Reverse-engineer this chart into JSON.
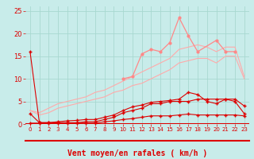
{
  "x": [
    0,
    1,
    2,
    3,
    4,
    5,
    6,
    7,
    8,
    9,
    10,
    11,
    12,
    13,
    14,
    15,
    16,
    17,
    18,
    19,
    20,
    21,
    22,
    23
  ],
  "dark_red1": [
    16.0,
    0.3,
    0.3,
    0.3,
    0.3,
    0.3,
    0.5,
    0.5,
    1.0,
    1.5,
    2.5,
    3.0,
    3.5,
    4.5,
    4.5,
    5.0,
    5.0,
    5.0,
    5.5,
    5.5,
    5.5,
    5.5,
    5.0,
    2.3
  ],
  "dark_red2": [
    2.3,
    0.3,
    0.3,
    0.5,
    0.7,
    0.8,
    1.0,
    1.0,
    1.5,
    2.0,
    3.0,
    3.8,
    4.2,
    4.8,
    5.0,
    5.2,
    5.5,
    7.0,
    6.5,
    5.0,
    4.5,
    5.5,
    5.5,
    4.0
  ],
  "dark_red3": [
    0.2,
    0.2,
    0.2,
    0.2,
    0.2,
    0.2,
    0.2,
    0.2,
    0.5,
    0.7,
    1.0,
    1.2,
    1.5,
    1.8,
    1.8,
    1.8,
    2.0,
    2.2,
    2.0,
    2.0,
    2.0,
    2.0,
    2.0,
    1.8
  ],
  "salmon_lower": [
    3.0,
    2.0,
    2.5,
    3.5,
    4.0,
    4.5,
    5.0,
    5.5,
    6.0,
    7.0,
    7.5,
    8.5,
    9.0,
    10.0,
    11.0,
    12.0,
    13.5,
    14.0,
    14.5,
    14.5,
    13.5,
    15.0,
    15.0,
    10.0
  ],
  "salmon_upper": [
    3.0,
    2.5,
    3.5,
    4.5,
    5.0,
    5.5,
    6.0,
    7.0,
    7.5,
    8.5,
    9.5,
    10.5,
    11.5,
    12.5,
    13.5,
    14.5,
    16.5,
    17.0,
    17.5,
    17.0,
    16.0,
    17.0,
    17.0,
    10.5
  ],
  "salmon_spiky_x": [
    10,
    11,
    12,
    13,
    14,
    15,
    16,
    17,
    18,
    20,
    21,
    22
  ],
  "salmon_spiky_y": [
    10.0,
    10.5,
    15.5,
    16.5,
    16.0,
    18.0,
    23.5,
    19.5,
    16.0,
    18.5,
    16.0,
    16.0
  ],
  "wind_arrows": [
    "↗",
    "↗",
    "↗",
    "↗",
    "↗",
    "↗",
    "↓",
    "→",
    "→",
    "→",
    "→",
    "←",
    "↗",
    "←",
    "←",
    "↗",
    "↗",
    "↓",
    "↗",
    "↓",
    "↓",
    "↓",
    "↓",
    "↓"
  ],
  "bg_color": "#c8ecea",
  "grid_color": "#a8d8d0",
  "dark_red": "#dd0000",
  "salmon_color": "#ff8888",
  "salmon_light": "#ffaaaa",
  "xlabel": "Vent moyen/en rafales ( km/h )",
  "yticks": [
    0,
    5,
    10,
    15,
    20,
    25
  ],
  "ylim": [
    0,
    26
  ],
  "xlim": [
    -0.5,
    23.5
  ],
  "tick_fontsize": 6,
  "xlabel_fontsize": 7
}
